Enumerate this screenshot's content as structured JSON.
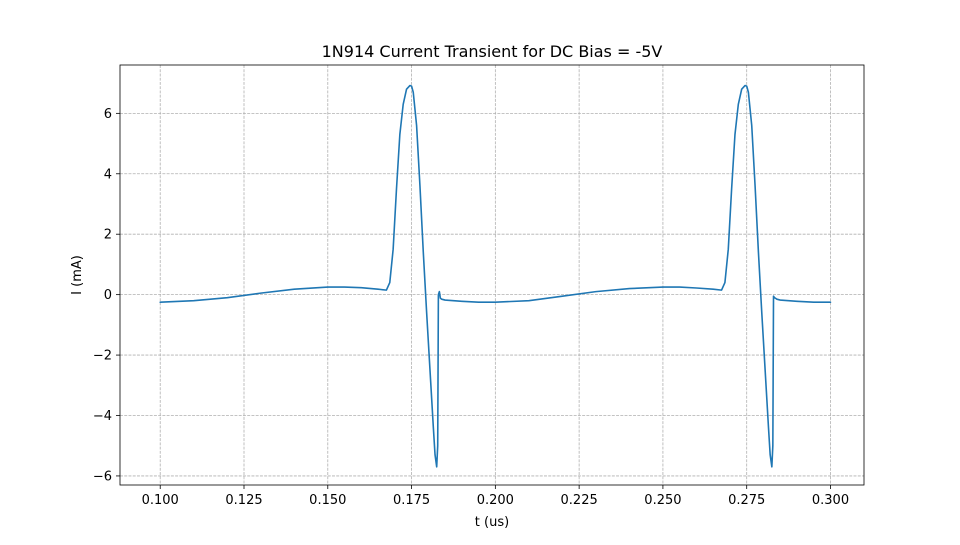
{
  "chart_data": {
    "type": "line",
    "title": "1N914 Current Transient for DC Bias = -5V",
    "xlabel": "t (us)",
    "ylabel": "I (mA)",
    "xlim": [
      0.088,
      0.31
    ],
    "ylim": [
      -6.3,
      7.6
    ],
    "grid": true,
    "xticks": [
      0.1,
      0.125,
      0.15,
      0.175,
      0.2,
      0.225,
      0.25,
      0.275,
      0.3
    ],
    "xtick_labels": [
      "0.100",
      "0.125",
      "0.150",
      "0.175",
      "0.200",
      "0.225",
      "0.250",
      "0.275",
      "0.300"
    ],
    "yticks": [
      -6,
      -4,
      -2,
      0,
      2,
      4,
      6
    ],
    "ytick_labels": [
      "−6",
      "−4",
      "−2",
      "0",
      "2",
      "4",
      "6"
    ],
    "series": [
      {
        "color": "#1f77b4",
        "x": [
          0.1,
          0.11,
          0.12,
          0.13,
          0.14,
          0.15,
          0.155,
          0.16,
          0.165,
          0.1675,
          0.1685,
          0.1695,
          0.1705,
          0.1715,
          0.1725,
          0.1735,
          0.1745,
          0.175,
          0.1755,
          0.1765,
          0.1775,
          0.1785,
          0.1795,
          0.1805,
          0.1815,
          0.182,
          0.1825,
          0.1828,
          0.183,
          0.1833,
          0.1836,
          0.184,
          0.185,
          0.19,
          0.195,
          0.2,
          0.21,
          0.22,
          0.23,
          0.24,
          0.25,
          0.255,
          0.26,
          0.265,
          0.2675,
          0.2685,
          0.2695,
          0.2705,
          0.2715,
          0.2725,
          0.2735,
          0.2745,
          0.275,
          0.2755,
          0.2765,
          0.2775,
          0.2785,
          0.2795,
          0.2805,
          0.2815,
          0.282,
          0.2825,
          0.2828,
          0.283,
          0.2833,
          0.2836,
          0.284,
          0.285,
          0.29,
          0.295,
          0.3
        ],
        "y": [
          -0.25,
          -0.2,
          -0.1,
          0.05,
          0.18,
          0.25,
          0.25,
          0.23,
          0.18,
          0.15,
          0.4,
          1.5,
          3.5,
          5.3,
          6.3,
          6.8,
          6.92,
          6.9,
          6.7,
          5.6,
          3.6,
          1.4,
          -0.6,
          -2.5,
          -4.4,
          -5.3,
          -5.7,
          -5.0,
          0.0,
          0.1,
          -0.12,
          -0.15,
          -0.18,
          -0.22,
          -0.25,
          -0.25,
          -0.2,
          -0.05,
          0.1,
          0.2,
          0.25,
          0.25,
          0.22,
          0.18,
          0.15,
          0.4,
          1.5,
          3.5,
          5.3,
          6.3,
          6.8,
          6.92,
          6.9,
          6.7,
          5.6,
          3.6,
          1.4,
          -0.6,
          -2.5,
          -4.4,
          -5.3,
          -5.7,
          -5.0,
          -0.05,
          -0.1,
          -0.12,
          -0.15,
          -0.18,
          -0.22,
          -0.25,
          -0.25
        ]
      }
    ]
  }
}
